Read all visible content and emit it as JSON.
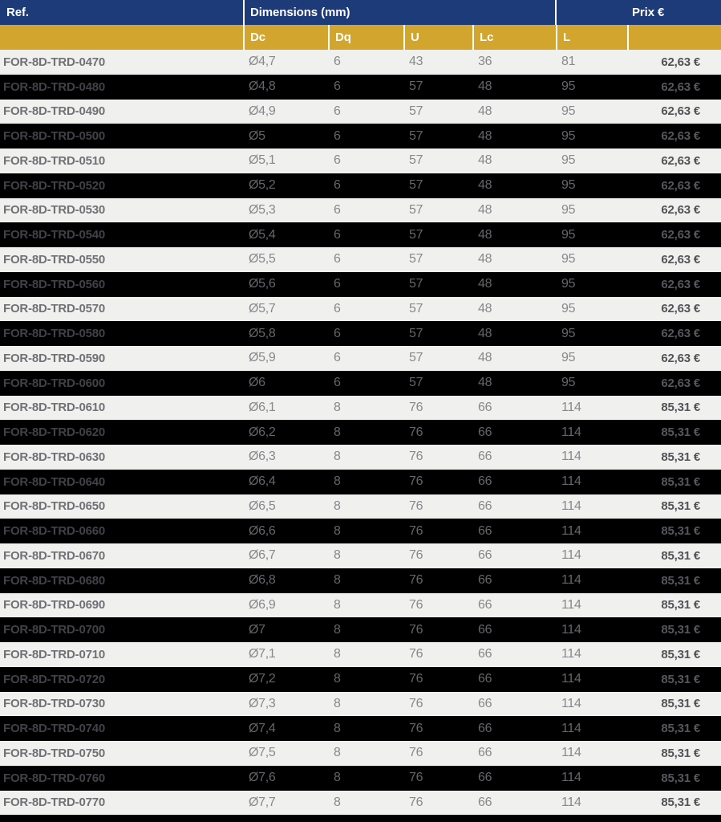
{
  "theme": {
    "navy": "#1d3b79",
    "gold": "#d2a52f",
    "rowLight": "#f0f0ee",
    "rowDark": "#000000",
    "sep": "#ffffff"
  },
  "table": {
    "header": {
      "ref": "Ref.",
      "dimensions": "Dimensions (mm)",
      "price": "Prix €"
    },
    "subheader": {
      "dc": "Dc",
      "dq": "Dq",
      "u": "U",
      "lc": "Lc",
      "l": "L"
    },
    "rows": [
      {
        "ref": "FOR-8D-TRD-0470",
        "dc": "Ø4,7",
        "dq": "6",
        "u": "43",
        "lc": "36",
        "l": "81",
        "price": "62,63 €"
      },
      {
        "ref": "FOR-8D-TRD-0480",
        "dc": "Ø4,8",
        "dq": "6",
        "u": "57",
        "lc": "48",
        "l": "95",
        "price": "62,63 €"
      },
      {
        "ref": "FOR-8D-TRD-0490",
        "dc": "Ø4,9",
        "dq": "6",
        "u": "57",
        "lc": "48",
        "l": "95",
        "price": "62,63 €"
      },
      {
        "ref": "FOR-8D-TRD-0500",
        "dc": "Ø5",
        "dq": "6",
        "u": "57",
        "lc": "48",
        "l": "95",
        "price": "62,63 €"
      },
      {
        "ref": "FOR-8D-TRD-0510",
        "dc": "Ø5,1",
        "dq": "6",
        "u": "57",
        "lc": "48",
        "l": "95",
        "price": "62,63 €"
      },
      {
        "ref": "FOR-8D-TRD-0520",
        "dc": "Ø5,2",
        "dq": "6",
        "u": "57",
        "lc": "48",
        "l": "95",
        "price": "62,63 €"
      },
      {
        "ref": "FOR-8D-TRD-0530",
        "dc": "Ø5,3",
        "dq": "6",
        "u": "57",
        "lc": "48",
        "l": "95",
        "price": "62,63 €"
      },
      {
        "ref": "FOR-8D-TRD-0540",
        "dc": "Ø5,4",
        "dq": "6",
        "u": "57",
        "lc": "48",
        "l": "95",
        "price": "62,63 €"
      },
      {
        "ref": "FOR-8D-TRD-0550",
        "dc": "Ø5,5",
        "dq": "6",
        "u": "57",
        "lc": "48",
        "l": "95",
        "price": "62,63 €"
      },
      {
        "ref": "FOR-8D-TRD-0560",
        "dc": "Ø5,6",
        "dq": "6",
        "u": "57",
        "lc": "48",
        "l": "95",
        "price": "62,63 €"
      },
      {
        "ref": "FOR-8D-TRD-0570",
        "dc": "Ø5,7",
        "dq": "6",
        "u": "57",
        "lc": "48",
        "l": "95",
        "price": "62,63 €"
      },
      {
        "ref": "FOR-8D-TRD-0580",
        "dc": "Ø5,8",
        "dq": "6",
        "u": "57",
        "lc": "48",
        "l": "95",
        "price": "62,63 €"
      },
      {
        "ref": "FOR-8D-TRD-0590",
        "dc": "Ø5,9",
        "dq": "6",
        "u": "57",
        "lc": "48",
        "l": "95",
        "price": "62,63 €"
      },
      {
        "ref": "FOR-8D-TRD-0600",
        "dc": "Ø6",
        "dq": "6",
        "u": "57",
        "lc": "48",
        "l": "95",
        "price": "62,63 €"
      },
      {
        "ref": "FOR-8D-TRD-0610",
        "dc": "Ø6,1",
        "dq": "8",
        "u": "76",
        "lc": "66",
        "l": "114",
        "price": "85,31 €"
      },
      {
        "ref": "FOR-8D-TRD-0620",
        "dc": "Ø6,2",
        "dq": "8",
        "u": "76",
        "lc": "66",
        "l": "114",
        "price": "85,31 €"
      },
      {
        "ref": "FOR-8D-TRD-0630",
        "dc": "Ø6,3",
        "dq": "8",
        "u": "76",
        "lc": "66",
        "l": "114",
        "price": "85,31 €"
      },
      {
        "ref": "FOR-8D-TRD-0640",
        "dc": "Ø6,4",
        "dq": "8",
        "u": "76",
        "lc": "66",
        "l": "114",
        "price": "85,31 €"
      },
      {
        "ref": "FOR-8D-TRD-0650",
        "dc": "Ø6,5",
        "dq": "8",
        "u": "76",
        "lc": "66",
        "l": "114",
        "price": "85,31 €"
      },
      {
        "ref": "FOR-8D-TRD-0660",
        "dc": "Ø6,6",
        "dq": "8",
        "u": "76",
        "lc": "66",
        "l": "114",
        "price": "85,31 €"
      },
      {
        "ref": "FOR-8D-TRD-0670",
        "dc": "Ø6,7",
        "dq": "8",
        "u": "76",
        "lc": "66",
        "l": "114",
        "price": "85,31 €"
      },
      {
        "ref": "FOR-8D-TRD-0680",
        "dc": "Ø6,8",
        "dq": "8",
        "u": "76",
        "lc": "66",
        "l": "114",
        "price": "85,31 €"
      },
      {
        "ref": "FOR-8D-TRD-0690",
        "dc": "Ø6,9",
        "dq": "8",
        "u": "76",
        "lc": "66",
        "l": "114",
        "price": "85,31 €"
      },
      {
        "ref": "FOR-8D-TRD-0700",
        "dc": "Ø7",
        "dq": "8",
        "u": "76",
        "lc": "66",
        "l": "114",
        "price": "85,31 €"
      },
      {
        "ref": "FOR-8D-TRD-0710",
        "dc": "Ø7,1",
        "dq": "8",
        "u": "76",
        "lc": "66",
        "l": "114",
        "price": "85,31 €"
      },
      {
        "ref": "FOR-8D-TRD-0720",
        "dc": "Ø7,2",
        "dq": "8",
        "u": "76",
        "lc": "66",
        "l": "114",
        "price": "85,31 €"
      },
      {
        "ref": "FOR-8D-TRD-0730",
        "dc": "Ø7,3",
        "dq": "8",
        "u": "76",
        "lc": "66",
        "l": "114",
        "price": "85,31 €"
      },
      {
        "ref": "FOR-8D-TRD-0740",
        "dc": "Ø7,4",
        "dq": "8",
        "u": "76",
        "lc": "66",
        "l": "114",
        "price": "85,31 €"
      },
      {
        "ref": "FOR-8D-TRD-0750",
        "dc": "Ø7,5",
        "dq": "8",
        "u": "76",
        "lc": "66",
        "l": "114",
        "price": "85,31 €"
      },
      {
        "ref": "FOR-8D-TRD-0760",
        "dc": "Ø7,6",
        "dq": "8",
        "u": "76",
        "lc": "66",
        "l": "114",
        "price": "85,31 €"
      },
      {
        "ref": "FOR-8D-TRD-0770",
        "dc": "Ø7,7",
        "dq": "8",
        "u": "76",
        "lc": "66",
        "l": "114",
        "price": "85,31 €"
      }
    ]
  }
}
